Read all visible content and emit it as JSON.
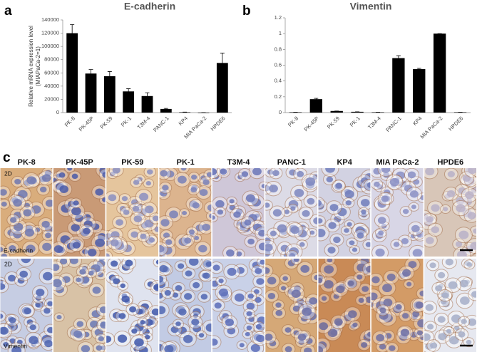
{
  "panels": {
    "a": "a",
    "b": "b",
    "c": "c"
  },
  "chart_data": [
    {
      "type": "bar",
      "title": "E-cadherin",
      "ylabel": [
        "Relative mRNA expression level",
        "(MIAPaCa-2=1)"
      ],
      "categories": [
        "PK-8",
        "PK-45P",
        "PK-59",
        "PK-1",
        "T3M-4",
        "PANC-1",
        "KP4",
        "MIA PaCa-2",
        "HPDE6"
      ],
      "values": [
        120000,
        59000,
        55000,
        32000,
        25000,
        5500,
        600,
        1,
        75000
      ],
      "errors": [
        13000,
        6000,
        7000,
        4000,
        5000,
        800,
        200,
        0,
        15000
      ],
      "color": "#000000",
      "ylim": [
        0,
        140000
      ],
      "yticks": [
        0,
        20000,
        40000,
        60000,
        80000,
        100000,
        120000,
        140000
      ]
    },
    {
      "type": "bar",
      "title": "Vimentin",
      "categories": [
        "PK-8",
        "PK-45P",
        "PK-59",
        "PK-1",
        "T3M-4",
        "PANC-1",
        "KP4",
        "MIA PaCa-2",
        "HPDE6"
      ],
      "values": [
        0.005,
        0.17,
        0.02,
        0.01,
        0.005,
        0.69,
        0.55,
        1,
        0.005
      ],
      "errors": [
        0,
        0.01,
        0,
        0,
        0,
        0.03,
        0.01,
        0,
        0
      ],
      "color": "#000000",
      "ylim": [
        0,
        1.2
      ],
      "yticks": [
        0,
        0.2,
        0.4,
        0.6,
        0.8,
        1,
        1.2
      ]
    }
  ],
  "image_grid": {
    "columns": [
      "PK-8",
      "PK-45P",
      "PK-59",
      "PK-1",
      "T3M-4",
      "PANC-1",
      "KP4",
      "MIA PaCa-2",
      "HPDE6"
    ],
    "rows": [
      {
        "culture": "2D",
        "stain": "E-cadherin"
      },
      {
        "culture": "2D",
        "stain": "Vimentin"
      }
    ]
  }
}
